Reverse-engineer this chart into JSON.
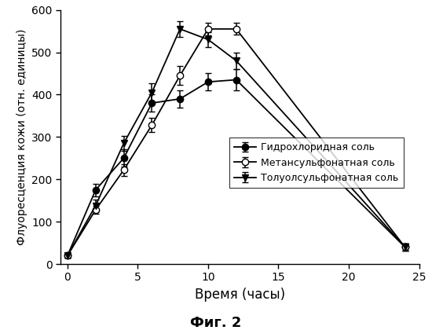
{
  "title": "Фиг. 2",
  "xlabel": "Время (часы)",
  "ylabel": "Флуоресценция кожи (отн. единицы)",
  "xlim": [
    -0.5,
    25
  ],
  "ylim": [
    0,
    600
  ],
  "xticks": [
    0,
    5,
    10,
    15,
    20,
    25
  ],
  "yticks": [
    0,
    100,
    200,
    300,
    400,
    500,
    600
  ],
  "series": [
    {
      "label": "Гидрохлоридная соль",
      "x": [
        0,
        2,
        4,
        6,
        8,
        10,
        12,
        24
      ],
      "y": [
        20,
        175,
        250,
        380,
        390,
        430,
        435,
        40
      ],
      "yerr": [
        5,
        15,
        20,
        20,
        20,
        20,
        25,
        8
      ],
      "marker": "o",
      "marker_fill": "black",
      "markersize": 6
    },
    {
      "label": "Метансульфонатная соль",
      "x": [
        0,
        2,
        4,
        6,
        8,
        10,
        12,
        24
      ],
      "y": [
        20,
        128,
        222,
        328,
        445,
        555,
        555,
        40
      ],
      "yerr": [
        5,
        10,
        14,
        17,
        22,
        15,
        14,
        8
      ],
      "marker": "o",
      "marker_fill": "white",
      "markersize": 6
    },
    {
      "label": "Толуолсульфонатная соль",
      "x": [
        0,
        2,
        4,
        6,
        8,
        10,
        12,
        24
      ],
      "y": [
        20,
        138,
        285,
        405,
        555,
        530,
        480,
        40
      ],
      "yerr": [
        5,
        14,
        18,
        22,
        18,
        18,
        20,
        8
      ],
      "marker": "v",
      "marker_fill": "black",
      "markersize": 6
    }
  ],
  "background_color": "#ffffff",
  "linewidth": 1.3,
  "capsize": 3,
  "elinewidth": 1.1
}
